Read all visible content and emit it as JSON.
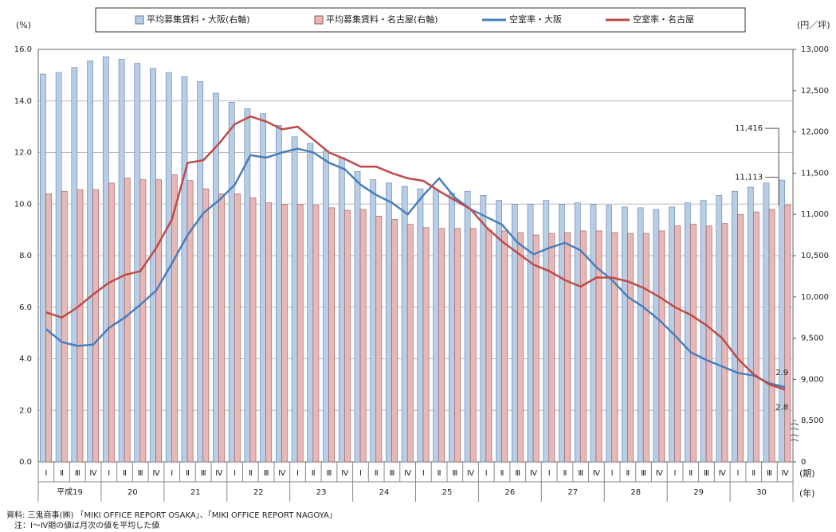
{
  "chart_data": {
    "type": "bar-line",
    "legend": "top",
    "grid": true,
    "y_unit": "(%)",
    "y2_unit": "(円／坪)",
    "x_unit": "(期)",
    "group_unit": "(年)",
    "categories": [
      "Ⅰ",
      "Ⅱ",
      "Ⅲ",
      "Ⅳ",
      "Ⅰ",
      "Ⅱ",
      "Ⅲ",
      "Ⅳ",
      "Ⅰ",
      "Ⅱ",
      "Ⅲ",
      "Ⅳ",
      "Ⅰ",
      "Ⅱ",
      "Ⅲ",
      "Ⅳ",
      "Ⅰ",
      "Ⅱ",
      "Ⅲ",
      "Ⅳ",
      "Ⅰ",
      "Ⅱ",
      "Ⅲ",
      "Ⅳ",
      "Ⅰ",
      "Ⅱ",
      "Ⅲ",
      "Ⅳ",
      "Ⅰ",
      "Ⅱ",
      "Ⅲ",
      "Ⅳ",
      "Ⅰ",
      "Ⅱ",
      "Ⅲ",
      "Ⅳ",
      "Ⅰ",
      "Ⅱ",
      "Ⅲ",
      "Ⅳ",
      "Ⅰ",
      "Ⅱ",
      "Ⅲ",
      "Ⅳ",
      "Ⅰ",
      "Ⅱ",
      "Ⅲ",
      "Ⅳ"
    ],
    "groups": [
      "平成19",
      "20",
      "21",
      "22",
      "23",
      "24",
      "25",
      "26",
      "27",
      "28",
      "29",
      "30"
    ],
    "ylim": [
      0,
      16
    ],
    "yticks": [
      {
        "value": 0,
        "label": "0.0"
      },
      {
        "value": 2,
        "label": "2.0"
      },
      {
        "value": 4,
        "label": "4.0"
      },
      {
        "value": 6,
        "label": "6.0"
      },
      {
        "value": 8,
        "label": "8.0"
      },
      {
        "value": 10,
        "label": "10.0"
      },
      {
        "value": 12,
        "label": "12.0"
      },
      {
        "value": 14,
        "label": "14.0"
      },
      {
        "value": 16,
        "label": "16.0"
      }
    ],
    "y2lim": [
      0,
      13000
    ],
    "y2_break": [
      0,
      8000
    ],
    "y2ticks": [
      0,
      {
        "value": 8500,
        "label": "8,500"
      },
      {
        "value": 9000,
        "label": "9,000"
      },
      {
        "value": 9500,
        "label": "9,500"
      },
      {
        "value": 10000,
        "label": "10,000"
      },
      {
        "value": 10500,
        "label": "10,500"
      },
      {
        "value": 11000,
        "label": "11,000"
      },
      {
        "value": 11500,
        "label": "11,500"
      },
      {
        "value": 12000,
        "label": "12,000"
      },
      {
        "value": 12500,
        "label": "12,500"
      },
      {
        "value": 13000,
        "label": "13,000"
      }
    ],
    "series": [
      {
        "name": "平均募集賃料・大阪(右軸)",
        "kind": "bar",
        "axis": "y2",
        "color": "#b9cde5",
        "stroke": "#5a7fb0",
        "values": [
          12700,
          12720,
          12780,
          12860,
          12910,
          12880,
          12830,
          12770,
          12720,
          12670,
          12610,
          12470,
          12360,
          12280,
          12220,
          12080,
          11940,
          11860,
          11770,
          11690,
          11520,
          11420,
          11380,
          11340,
          11310,
          11300,
          11260,
          11280,
          11230,
          11170,
          11120,
          11120,
          11170,
          11120,
          11140,
          11120,
          11110,
          11090,
          11080,
          11060,
          11090,
          11140,
          11170,
          11230,
          11280,
          11330,
          11380,
          11416
        ],
        "value_labels": [
          null,
          null,
          null,
          null,
          null,
          null,
          null,
          null,
          null,
          null,
          null,
          null,
          null,
          null,
          null,
          null,
          null,
          null,
          null,
          null,
          null,
          null,
          null,
          null,
          null,
          null,
          null,
          null,
          null,
          null,
          null,
          null,
          null,
          null,
          null,
          null,
          null,
          null,
          null,
          null,
          null,
          null,
          null,
          null,
          null,
          null,
          null,
          "11,416"
        ]
      },
      {
        "name": "平均募集賃料・名古屋(右軸)",
        "kind": "bar",
        "axis": "y2",
        "color": "#e6b9b8",
        "stroke": "#a0504d",
        "values": [
          11250,
          11280,
          11300,
          11300,
          11380,
          11440,
          11420,
          11420,
          11480,
          11410,
          11310,
          11250,
          11250,
          11200,
          11140,
          11120,
          11120,
          11110,
          11080,
          11050,
          11060,
          10980,
          10940,
          10880,
          10840,
          10830,
          10830,
          10830,
          10810,
          10800,
          10780,
          10750,
          10770,
          10780,
          10800,
          10800,
          10780,
          10770,
          10770,
          10800,
          10860,
          10880,
          10860,
          10890,
          11000,
          11030,
          11060,
          11113
        ],
        "value_labels": [
          null,
          null,
          null,
          null,
          null,
          null,
          null,
          null,
          null,
          null,
          null,
          null,
          null,
          null,
          null,
          null,
          null,
          null,
          null,
          null,
          null,
          null,
          null,
          null,
          null,
          null,
          null,
          null,
          null,
          null,
          null,
          null,
          null,
          null,
          null,
          null,
          null,
          null,
          null,
          null,
          null,
          null,
          null,
          null,
          null,
          null,
          null,
          "11,113"
        ]
      },
      {
        "name": "空室率・大阪",
        "kind": "line",
        "color": "#4a7ebb",
        "values": [
          5.15,
          4.65,
          4.5,
          4.55,
          5.2,
          5.6,
          6.1,
          6.65,
          7.7,
          8.8,
          9.65,
          10.15,
          10.75,
          11.9,
          11.8,
          12.0,
          12.15,
          12.0,
          11.6,
          11.35,
          10.75,
          10.35,
          10.05,
          9.6,
          10.35,
          11.0,
          10.25,
          9.8,
          9.5,
          9.2,
          8.5,
          8.05,
          8.3,
          8.5,
          8.2,
          7.55,
          7.05,
          6.4,
          6.0,
          5.5,
          4.9,
          4.25,
          3.95,
          3.7,
          3.45,
          3.35,
          3.05,
          2.9
        ],
        "value_labels": [
          null,
          null,
          null,
          null,
          null,
          null,
          null,
          null,
          null,
          null,
          null,
          null,
          null,
          null,
          null,
          null,
          null,
          null,
          null,
          null,
          null,
          null,
          null,
          null,
          null,
          null,
          null,
          null,
          null,
          null,
          null,
          null,
          null,
          null,
          null,
          null,
          null,
          null,
          null,
          null,
          null,
          null,
          null,
          null,
          null,
          null,
          null,
          "2.9"
        ]
      },
      {
        "name": "空室率・名古屋",
        "kind": "line",
        "color": "#be4b48",
        "values": [
          5.8,
          5.6,
          6.0,
          6.5,
          6.95,
          7.25,
          7.4,
          8.3,
          9.4,
          11.6,
          11.7,
          12.35,
          13.1,
          13.4,
          13.2,
          12.9,
          13.0,
          12.5,
          12.0,
          11.75,
          11.45,
          11.45,
          11.2,
          11.0,
          10.9,
          10.5,
          10.15,
          9.8,
          9.1,
          8.55,
          8.1,
          7.65,
          7.4,
          7.05,
          6.8,
          7.15,
          7.15,
          7.0,
          6.75,
          6.4,
          6.0,
          5.7,
          5.3,
          4.8,
          4.0,
          3.4,
          3.0,
          2.8
        ],
        "value_labels": [
          null,
          null,
          null,
          null,
          null,
          null,
          null,
          null,
          null,
          null,
          null,
          null,
          null,
          null,
          null,
          null,
          null,
          null,
          null,
          null,
          null,
          null,
          null,
          null,
          null,
          null,
          null,
          null,
          null,
          null,
          null,
          null,
          null,
          null,
          null,
          null,
          null,
          null,
          null,
          null,
          null,
          null,
          null,
          null,
          null,
          null,
          null,
          "2.8"
        ]
      }
    ],
    "source": "資料: 三鬼商事(㈱) 「MIKI OFFICE REPORT OSAKA」、「MIKI OFFICE REPORT NAGOYA」",
    "note": "注：Ⅰ～Ⅳ期の値は月次の値を平均した値"
  }
}
